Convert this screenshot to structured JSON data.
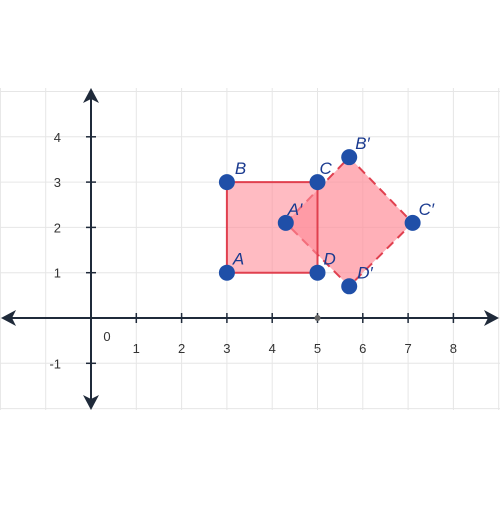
{
  "grid": true,
  "axes": {
    "x_ticks": [
      "0",
      "1",
      "2",
      "3",
      "4",
      "5",
      "6",
      "7",
      "8"
    ],
    "y_ticks": [
      "-1",
      "1",
      "2",
      "3",
      "4"
    ],
    "x_range": [
      -2,
      9
    ],
    "y_range": [
      -2,
      5
    ]
  },
  "colors": {
    "grid": "#e6e6e6",
    "axis": "#1f2a3a",
    "fill": "#ff8e9a",
    "edge": "#e0404f",
    "point": "#1f4fa8",
    "label": "#1a3a8f"
  },
  "original": {
    "labels": [
      "A",
      "B",
      "C",
      "D"
    ],
    "points": [
      [
        3,
        1
      ],
      [
        3,
        3
      ],
      [
        5,
        3
      ],
      [
        5,
        1
      ]
    ]
  },
  "image": {
    "labels": [
      "A′",
      "B′",
      "C′",
      "D′"
    ],
    "points": [
      [
        4.3,
        2.1
      ],
      [
        5.7,
        3.55
      ],
      [
        7.1,
        2.1
      ],
      [
        5.7,
        0.7
      ]
    ]
  },
  "origin_marker": [
    5,
    -0.05
  ]
}
